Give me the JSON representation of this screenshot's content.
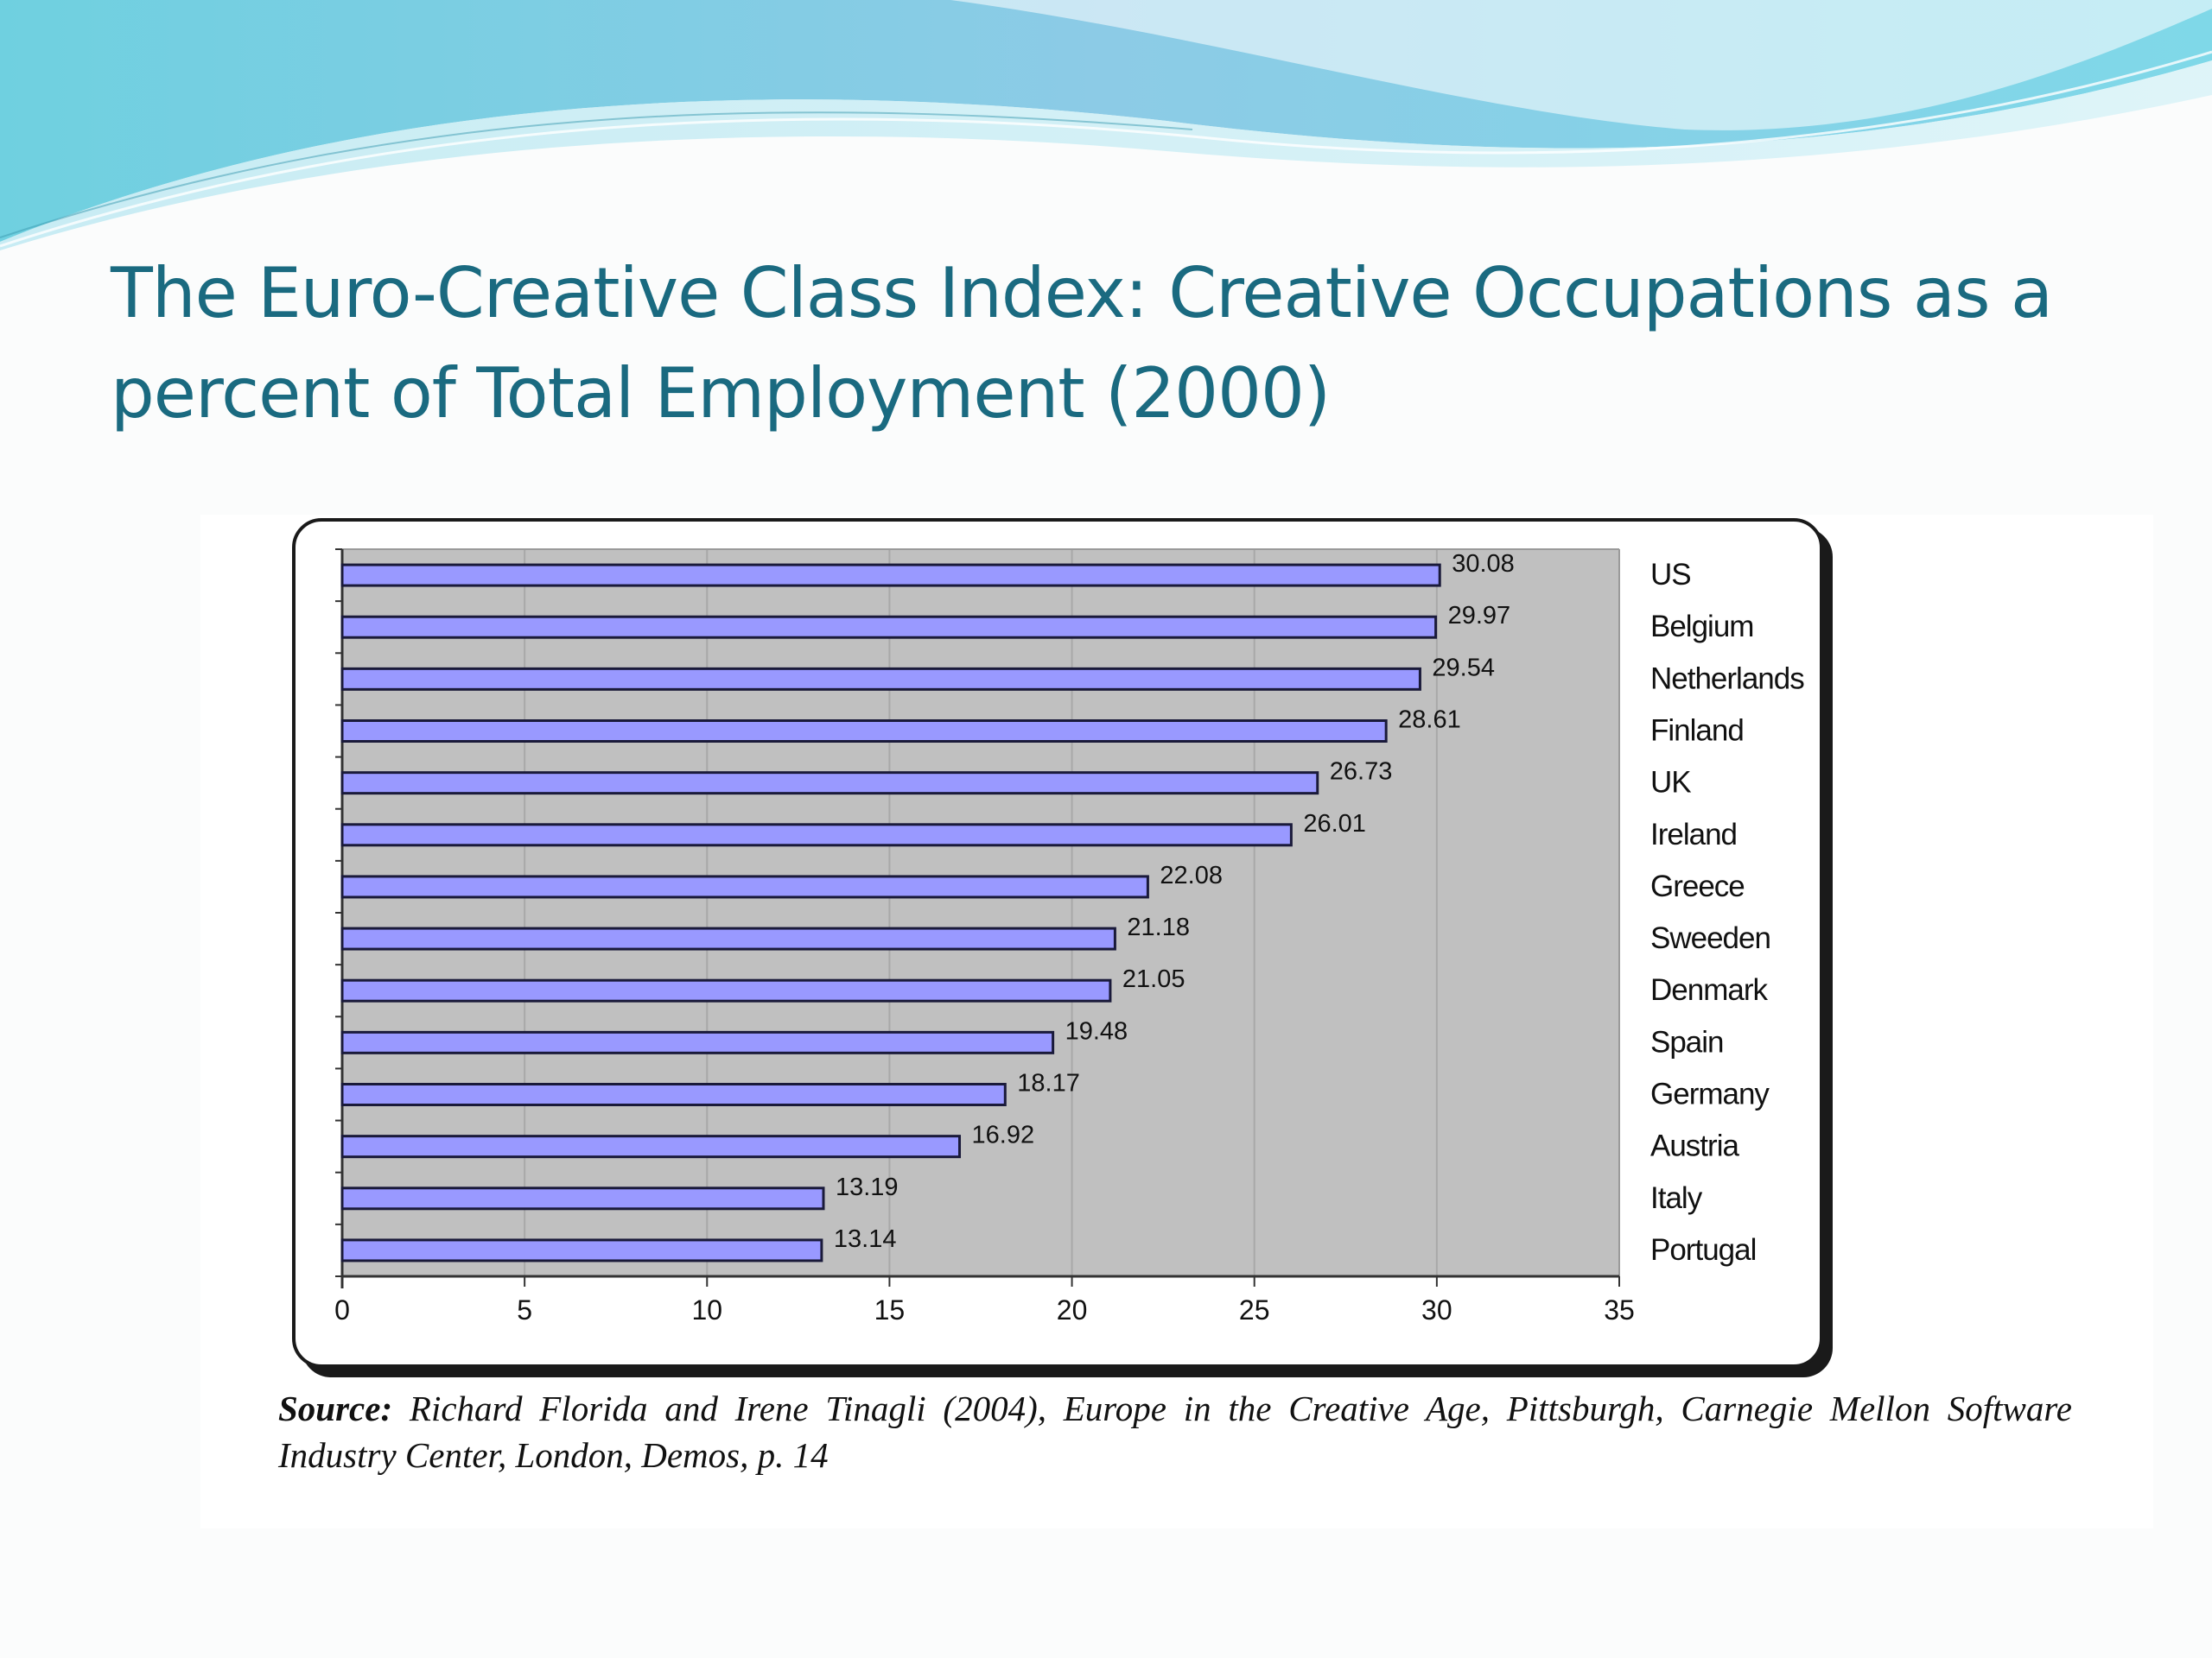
{
  "slide": {
    "title": "The Euro-Creative Class Index: Creative Occupations as a percent of Total Employment (2000)"
  },
  "source": {
    "label": "Source:",
    "text": "Richard Florida and Irene Tinagli (2004), Europe in the Creative Age, Pittsburgh, Carnegie Mellon Software Industry Center, London, Demos, p. 14"
  },
  "colors": {
    "bar_fill": "#9999ff",
    "bar_stroke": "#1a1a3a",
    "plot_bg": "#c0c0c0",
    "title": "#1a6a80"
  },
  "chart_data": {
    "type": "bar",
    "orientation": "horizontal",
    "categories": [
      "US",
      "Belgium",
      "Netherlands",
      "Finland",
      "UK",
      "Ireland",
      "Greece",
      "Sweeden",
      "Denmark",
      "Spain",
      "Germany",
      "Austria",
      "Italy",
      "Portugal"
    ],
    "values": [
      30.08,
      29.97,
      29.54,
      28.61,
      26.73,
      26.01,
      22.08,
      21.18,
      21.05,
      19.48,
      18.17,
      16.92,
      13.19,
      13.14
    ],
    "value_labels": [
      "30.08",
      "29.97",
      "29.54",
      "28.61",
      "26.73",
      "26.01",
      "22.08",
      "21.18",
      "21.05",
      "19.48",
      "18.17",
      "16.92",
      "13.19",
      "13.14"
    ],
    "xlim": [
      0,
      35
    ],
    "x_ticks": [
      "0",
      "5",
      "10",
      "15",
      "20",
      "25",
      "30",
      "35"
    ],
    "category_label_side": "right",
    "grid": true,
    "legend": false
  }
}
